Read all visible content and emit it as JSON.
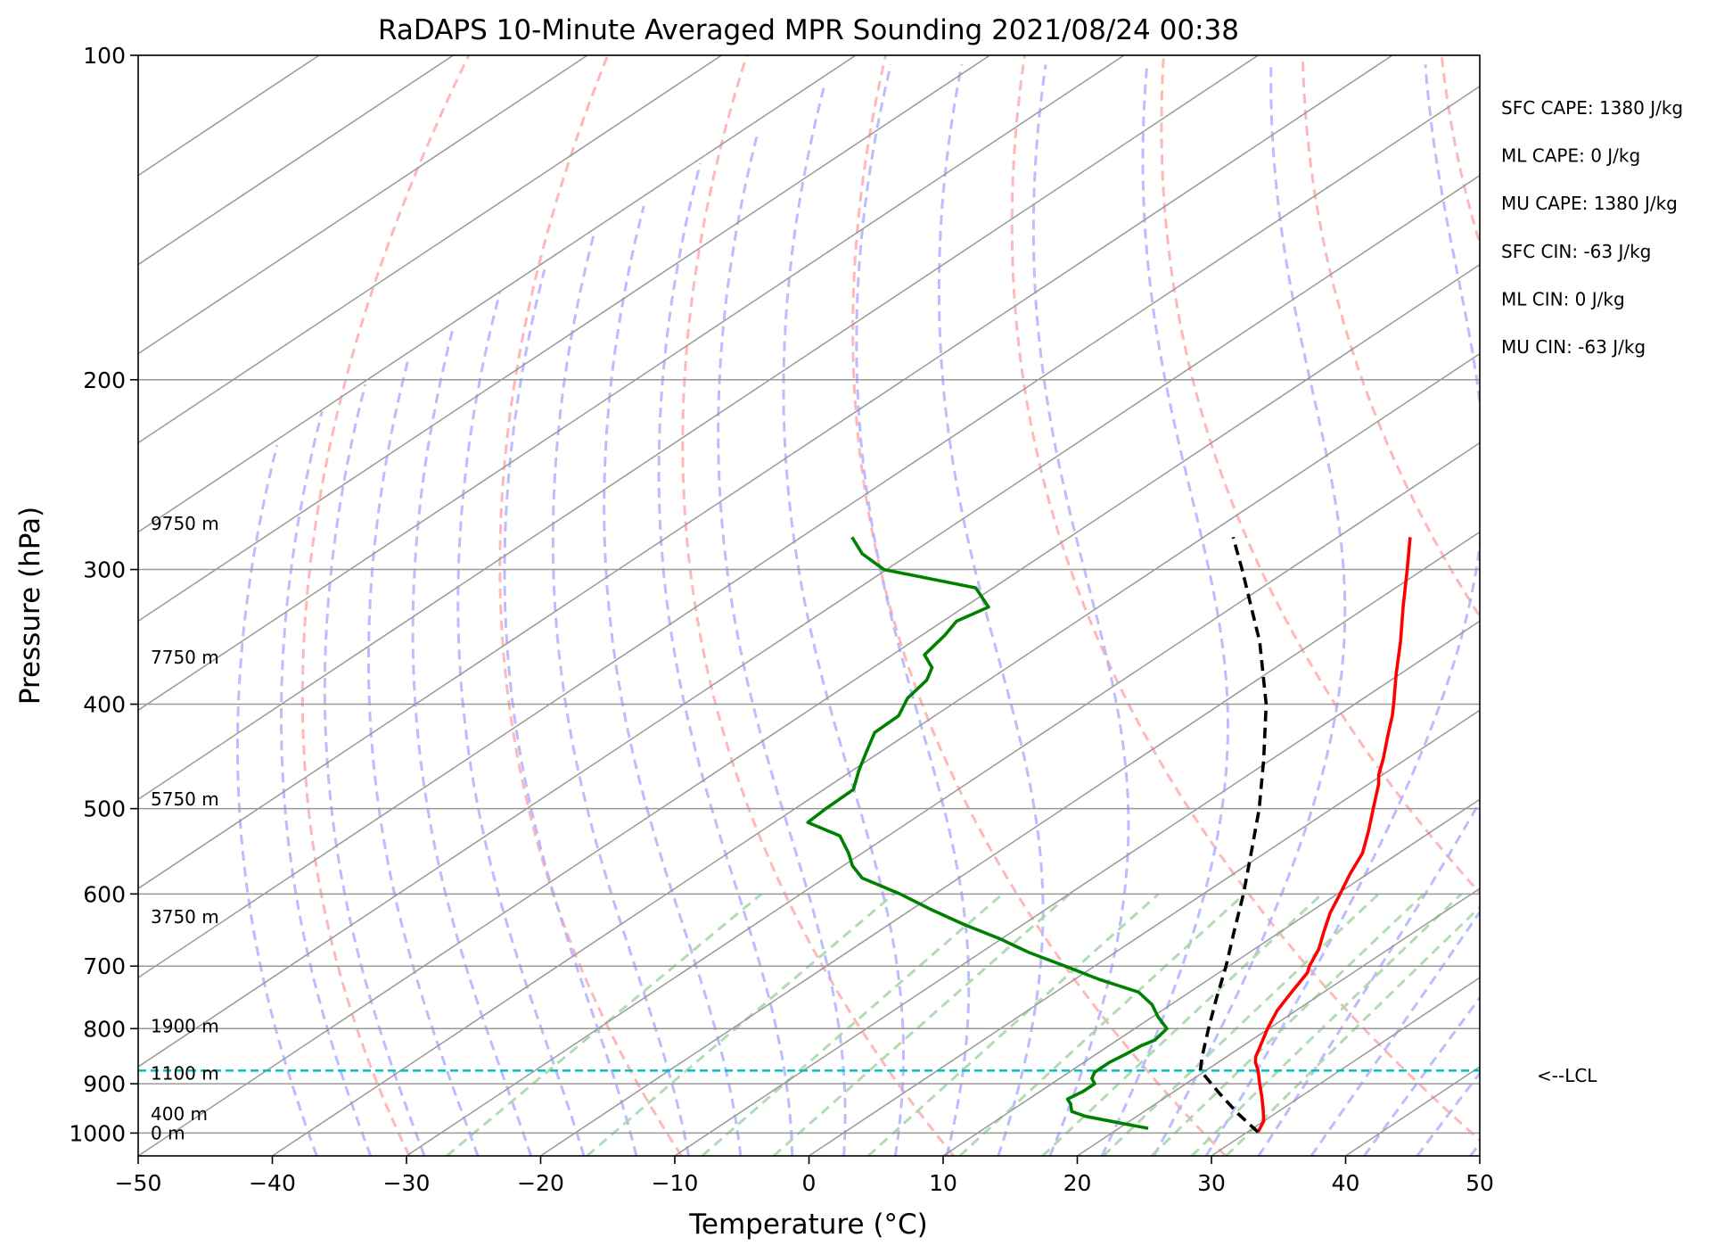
{
  "chart_data": {
    "type": "line",
    "title": "RaDAPS 10-Minute Averaged MPR Sounding 2021/08/24 00:38",
    "xlabel": "Temperature (°C)",
    "ylabel": "Pressure (hPa)",
    "xlim": [
      -50,
      50
    ],
    "ylim": [
      1050,
      100
    ],
    "y_scale": "log",
    "grid": true,
    "x_ticks": [
      -50,
      -40,
      -30,
      -20,
      -10,
      0,
      10,
      20,
      30,
      40,
      50
    ],
    "x_tick_labels": [
      "−50",
      "−40",
      "−30",
      "−20",
      "−10",
      "0",
      "10",
      "20",
      "30",
      "40",
      "50"
    ],
    "y_ticks": [
      100,
      200,
      300,
      400,
      500,
      600,
      700,
      800,
      900,
      1000
    ],
    "y_tick_labels": [
      "100",
      "200",
      "300",
      "400",
      "500",
      "600",
      "700",
      "800",
      "900",
      "1000"
    ],
    "series": [
      {
        "key": "temperature",
        "color": "#ff0000",
        "style": "solid",
        "points": [
          {
            "p": 998,
            "t": 30.8
          },
          {
            "p": 975,
            "t": 30.0
          },
          {
            "p": 950,
            "t": 28.6
          },
          {
            "p": 925,
            "t": 27.1
          },
          {
            "p": 900,
            "t": 25.5
          },
          {
            "p": 875,
            "t": 23.9
          },
          {
            "p": 860,
            "t": 22.8
          },
          {
            "p": 850,
            "t": 22.2
          },
          {
            "p": 830,
            "t": 21.3
          },
          {
            "p": 800,
            "t": 19.9
          },
          {
            "p": 770,
            "t": 18.6
          },
          {
            "p": 740,
            "t": 17.6
          },
          {
            "p": 710,
            "t": 16.6
          },
          {
            "p": 700,
            "t": 16.0
          },
          {
            "p": 675,
            "t": 14.8
          },
          {
            "p": 650,
            "t": 13.2
          },
          {
            "p": 625,
            "t": 11.6
          },
          {
            "p": 600,
            "t": 10.2
          },
          {
            "p": 575,
            "t": 8.7
          },
          {
            "p": 550,
            "t": 7.3
          },
          {
            "p": 525,
            "t": 5.3
          },
          {
            "p": 500,
            "t": 3.1
          },
          {
            "p": 475,
            "t": 0.8
          },
          {
            "p": 465,
            "t": -0.3
          },
          {
            "p": 450,
            "t": -1.7
          },
          {
            "p": 425,
            "t": -4.3
          },
          {
            "p": 410,
            "t": -5.9
          },
          {
            "p": 400,
            "t": -7.1
          },
          {
            "p": 375,
            "t": -10.3
          },
          {
            "p": 350,
            "t": -13.6
          },
          {
            "p": 325,
            "t": -17.3
          },
          {
            "p": 300,
            "t": -21.2
          },
          {
            "p": 280,
            "t": -24.6
          }
        ]
      },
      {
        "key": "dewpoint",
        "color": "#008000",
        "style": "solid",
        "points": [
          {
            "p": 990,
            "t": 22.2
          },
          {
            "p": 980,
            "t": 19.8
          },
          {
            "p": 965,
            "t": 16.2
          },
          {
            "p": 955,
            "t": 14.6
          },
          {
            "p": 940,
            "t": 13.7
          },
          {
            "p": 930,
            "t": 12.9
          },
          {
            "p": 915,
            "t": 13.2
          },
          {
            "p": 900,
            "t": 13.2
          },
          {
            "p": 890,
            "t": 12.4
          },
          {
            "p": 878,
            "t": 11.9
          },
          {
            "p": 860,
            "t": 11.9
          },
          {
            "p": 845,
            "t": 12.2
          },
          {
            "p": 830,
            "t": 12.4
          },
          {
            "p": 820,
            "t": 12.8
          },
          {
            "p": 800,
            "t": 12.4
          },
          {
            "p": 780,
            "t": 10.4
          },
          {
            "p": 760,
            "t": 8.6
          },
          {
            "p": 740,
            "t": 6.2
          },
          {
            "p": 720,
            "t": 1.8
          },
          {
            "p": 700,
            "t": -2.2
          },
          {
            "p": 680,
            "t": -6.4
          },
          {
            "p": 660,
            "t": -10.2
          },
          {
            "p": 640,
            "t": -14.5
          },
          {
            "p": 620,
            "t": -18.6
          },
          {
            "p": 600,
            "t": -22.6
          },
          {
            "p": 580,
            "t": -27.2
          },
          {
            "p": 565,
            "t": -29.3
          },
          {
            "p": 550,
            "t": -31.0
          },
          {
            "p": 530,
            "t": -33.6
          },
          {
            "p": 515,
            "t": -37.5
          },
          {
            "p": 500,
            "t": -37.7
          },
          {
            "p": 480,
            "t": -37.8
          },
          {
            "p": 460,
            "t": -39.6
          },
          {
            "p": 440,
            "t": -41.3
          },
          {
            "p": 425,
            "t": -42.6
          },
          {
            "p": 410,
            "t": -42.7
          },
          {
            "p": 395,
            "t": -44.0
          },
          {
            "p": 380,
            "t": -44.6
          },
          {
            "p": 370,
            "t": -45.6
          },
          {
            "p": 360,
            "t": -47.6
          },
          {
            "p": 345,
            "t": -48.3
          },
          {
            "p": 335,
            "t": -49.0
          },
          {
            "p": 325,
            "t": -48.2
          },
          {
            "p": 312,
            "t": -51.3
          },
          {
            "p": 300,
            "t": -60.2
          },
          {
            "p": 290,
            "t": -63.6
          },
          {
            "p": 280,
            "t": -66.2
          }
        ]
      },
      {
        "key": "parcel",
        "color": "#000000",
        "style": "dashed",
        "points": [
          {
            "p": 998,
            "t": 30.8
          },
          {
            "p": 960,
            "t": 27.3
          },
          {
            "p": 920,
            "t": 23.7
          },
          {
            "p": 875,
            "t": 19.6
          },
          {
            "p": 850,
            "t": 18.2
          },
          {
            "p": 800,
            "t": 15.5
          },
          {
            "p": 750,
            "t": 12.7
          },
          {
            "p": 700,
            "t": 9.8
          },
          {
            "p": 650,
            "t": 6.5
          },
          {
            "p": 600,
            "t": 3.0
          },
          {
            "p": 550,
            "t": -1.0
          },
          {
            "p": 500,
            "t": -5.4
          },
          {
            "p": 450,
            "t": -10.6
          },
          {
            "p": 400,
            "t": -16.6
          },
          {
            "p": 350,
            "t": -24.1
          },
          {
            "p": 300,
            "t": -33.5
          },
          {
            "p": 280,
            "t": -37.8
          }
        ]
      }
    ],
    "lcl": {
      "p": 875,
      "label": "<--LCL",
      "color": "#00c0c0"
    },
    "height_labels": [
      {
        "label": "9750 m",
        "p": 272
      },
      {
        "label": "7750 m",
        "p": 362
      },
      {
        "label": "5750 m",
        "p": 490
      },
      {
        "label": "3750 m",
        "p": 630
      },
      {
        "label": "1900 m",
        "p": 796
      },
      {
        "label": "1100 m",
        "p": 880
      },
      {
        "label": "400 m",
        "p": 960
      },
      {
        "label": "0 m",
        "p": 1000
      }
    ],
    "indices": [
      "SFC CAPE: 1380 J/kg",
      "ML CAPE: 0 J/kg",
      "MU CAPE: 1380 J/kg",
      "SFC CIN: -63 J/kg",
      "ML CIN: 0 J/kg",
      "MU CIN: -63 J/kg"
    ],
    "colors": {
      "dry_adiabat": "#ffb0b0",
      "moist_adiabat": "#b0b0ff",
      "mixing_ratio": "#a8d8a8",
      "isotherm": "#999999",
      "isobar": "#999999"
    }
  }
}
